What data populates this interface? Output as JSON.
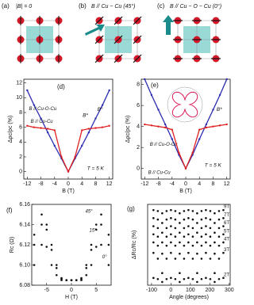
{
  "diagrams": [
    {
      "label": "(a)",
      "caption": "|B| = 0"
    },
    {
      "label": "(b)",
      "caption": "B // Cu − Cu (45°)"
    },
    {
      "label": "(c)",
      "caption": "B // Cu − O − Cu (0°)"
    }
  ],
  "chart_data": [
    {
      "type": "line",
      "panel_label": "(d)",
      "xlabel": "B (T)",
      "ylabel": "Δρc/ρc (%)",
      "x": [
        -12,
        -10,
        -8,
        -6,
        -4,
        -2,
        0,
        2,
        4,
        6,
        8,
        10,
        12
      ],
      "xlim": [
        -13,
        13
      ],
      "xticks": [
        -12,
        -8,
        -4,
        0,
        4,
        8,
        12
      ],
      "ylim": [
        -1,
        12.5
      ],
      "yticks": [
        0,
        2,
        4,
        6,
        8,
        10,
        12
      ],
      "series": [
        {
          "name": "B // Cu-O-Cu",
          "color": "#2b2bb0",
          "values": [
            11,
            9,
            7.2,
            5.3,
            3.5,
            1.8,
            0,
            1.8,
            3.5,
            5.3,
            7.2,
            9,
            11
          ]
        },
        {
          "name": "B // Cu-Cu",
          "color": "#e02020",
          "values": [
            6.2,
            6.0,
            5.9,
            5.8,
            5.6,
            2,
            0,
            2,
            5.6,
            5.8,
            5.9,
            6.0,
            6.2
          ]
        }
      ],
      "annotations": [
        "B*",
        "B°",
        "T = 5 K"
      ]
    },
    {
      "type": "line",
      "panel_label": "(e)",
      "xlabel": "B (T)",
      "ylabel": "Δρc/ρc (%)",
      "x": [
        -12,
        -10,
        -8,
        -6,
        -4,
        -2,
        0,
        2,
        4,
        6,
        8,
        10,
        12
      ],
      "xlim": [
        -13,
        13
      ],
      "xticks": [
        -12,
        -8,
        -4,
        0,
        4,
        8,
        12
      ],
      "ylim": [
        -1,
        8.5
      ],
      "yticks": [
        0,
        2,
        4,
        6,
        8
      ],
      "series": [
        {
          "name": "B // Cu-O-Cu",
          "color": "#2b2bb0",
          "values": [
            8.5,
            7,
            5.6,
            4.2,
            2.8,
            1.3,
            0,
            1.3,
            2.8,
            4.2,
            5.6,
            7,
            8.5
          ]
        },
        {
          "name": "B // Cu-Cu",
          "color": "#e02020",
          "values": [
            4.2,
            4.1,
            4.0,
            3.9,
            3.7,
            1.5,
            0,
            1.5,
            3.7,
            3.9,
            4.0,
            4.1,
            4.2
          ]
        }
      ],
      "annotations": [
        "B*",
        "T = 5 K"
      ]
    },
    {
      "type": "scatter",
      "panel_label": "(f)",
      "xlabel": "H (T)",
      "ylabel": "Rc (Ω)",
      "x": [
        -7.5,
        -6,
        -5,
        -4,
        -3,
        -2,
        -1,
        0,
        1,
        2,
        3,
        4,
        5,
        6,
        7.5
      ],
      "xlim": [
        -8,
        8
      ],
      "xticks": [
        -5,
        0,
        5
      ],
      "ylim": [
        6.08,
        6.16
      ],
      "yticks": [
        6.08,
        {
          "value": 6.1,
          "label": "6.10"
        },
        6.12,
        6.14,
        6.16
      ],
      "series": [
        {
          "name": "45°",
          "color": "#111",
          "values": [
            6.13,
            6.15,
            6.14,
            6.12,
            6.1,
            6.087,
            6.085,
            6.085,
            6.085,
            6.087,
            6.1,
            6.12,
            6.14,
            6.15,
            6.13
          ]
        },
        {
          "name": "15°",
          "color": "#111",
          "values": [
            6.12,
            6.14,
            6.135,
            6.115,
            6.097,
            6.086,
            6.085,
            6.085,
            6.085,
            6.086,
            6.097,
            6.115,
            6.135,
            6.14,
            6.12
          ]
        },
        {
          "name": "0°",
          "color": "#111",
          "values": [
            6.1,
            6.12,
            6.118,
            6.1,
            6.09,
            6.085,
            6.085,
            6.085,
            6.085,
            6.085,
            6.09,
            6.1,
            6.118,
            6.12,
            6.1
          ]
        }
      ],
      "annotations": []
    },
    {
      "type": "scatter",
      "panel_label": "(g)",
      "xlabel": "Angle (degrees)",
      "ylabel": "ΔRc/Rc (%)",
      "x": [
        -90,
        -67.5,
        -45,
        -22.5,
        0,
        22.5,
        45,
        67.5,
        90,
        112.5,
        135,
        157.5,
        180,
        202.5,
        225,
        247.5,
        270
      ],
      "xlim": [
        -120,
        305
      ],
      "xticks": [
        -100,
        0,
        100,
        200,
        300
      ],
      "ylim": [
        0,
        10
      ],
      "series": [
        {
          "name": "9T",
          "color": "#111",
          "values": [
            9.3,
            9.18,
            8.9,
            9.18,
            9.3,
            9.18,
            8.9,
            9.18,
            9.3,
            9.18,
            8.9,
            9.18,
            9.3,
            9.18,
            8.9,
            9.18,
            9.3
          ]
        },
        {
          "name": "7T",
          "color": "#111",
          "values": [
            8.3,
            8.13,
            7.7,
            8.13,
            8.3,
            8.13,
            7.7,
            8.13,
            8.3,
            8.13,
            7.7,
            8.13,
            8.3,
            8.13,
            7.7,
            8.13,
            8.3
          ]
        },
        {
          "name": "6T",
          "color": "#111",
          "values": [
            7.3,
            7.07,
            6.5,
            7.07,
            7.3,
            7.07,
            6.5,
            7.07,
            7.3,
            7.07,
            6.5,
            7.07,
            7.3,
            7.07,
            6.5,
            7.07,
            7.3
          ]
        },
        {
          "name": "5T",
          "color": "#111",
          "values": [
            6.3,
            6.01,
            5.3,
            6.01,
            6.3,
            6.01,
            5.3,
            6.01,
            6.3,
            6.01,
            5.3,
            6.01,
            6.3,
            6.01,
            5.3,
            6.01,
            6.3
          ]
        },
        {
          "name": "4T",
          "color": "#111",
          "values": [
            5.3,
            4.89,
            3.9,
            4.89,
            5.3,
            4.89,
            3.9,
            4.89,
            5.3,
            4.89,
            3.9,
            4.89,
            5.3,
            4.89,
            3.9,
            4.89,
            5.3
          ]
        },
        {
          "name": "3T",
          "color": "#111",
          "values": [
            4.0,
            3.28,
            1.5,
            3.28,
            4.0,
            3.28,
            1.5,
            3.28,
            4.0,
            3.28,
            1.5,
            3.28,
            4.0,
            3.28,
            1.5,
            3.28,
            4.0
          ]
        },
        {
          "name": "2T",
          "color": "#111",
          "values": [
            0.9,
            0.76,
            0.4,
            0.76,
            0.9,
            0.76,
            0.4,
            0.76,
            0.9,
            0.76,
            0.4,
            0.76,
            0.9,
            0.76,
            0.4,
            0.76,
            0.9
          ]
        }
      ],
      "annotations": []
    }
  ]
}
